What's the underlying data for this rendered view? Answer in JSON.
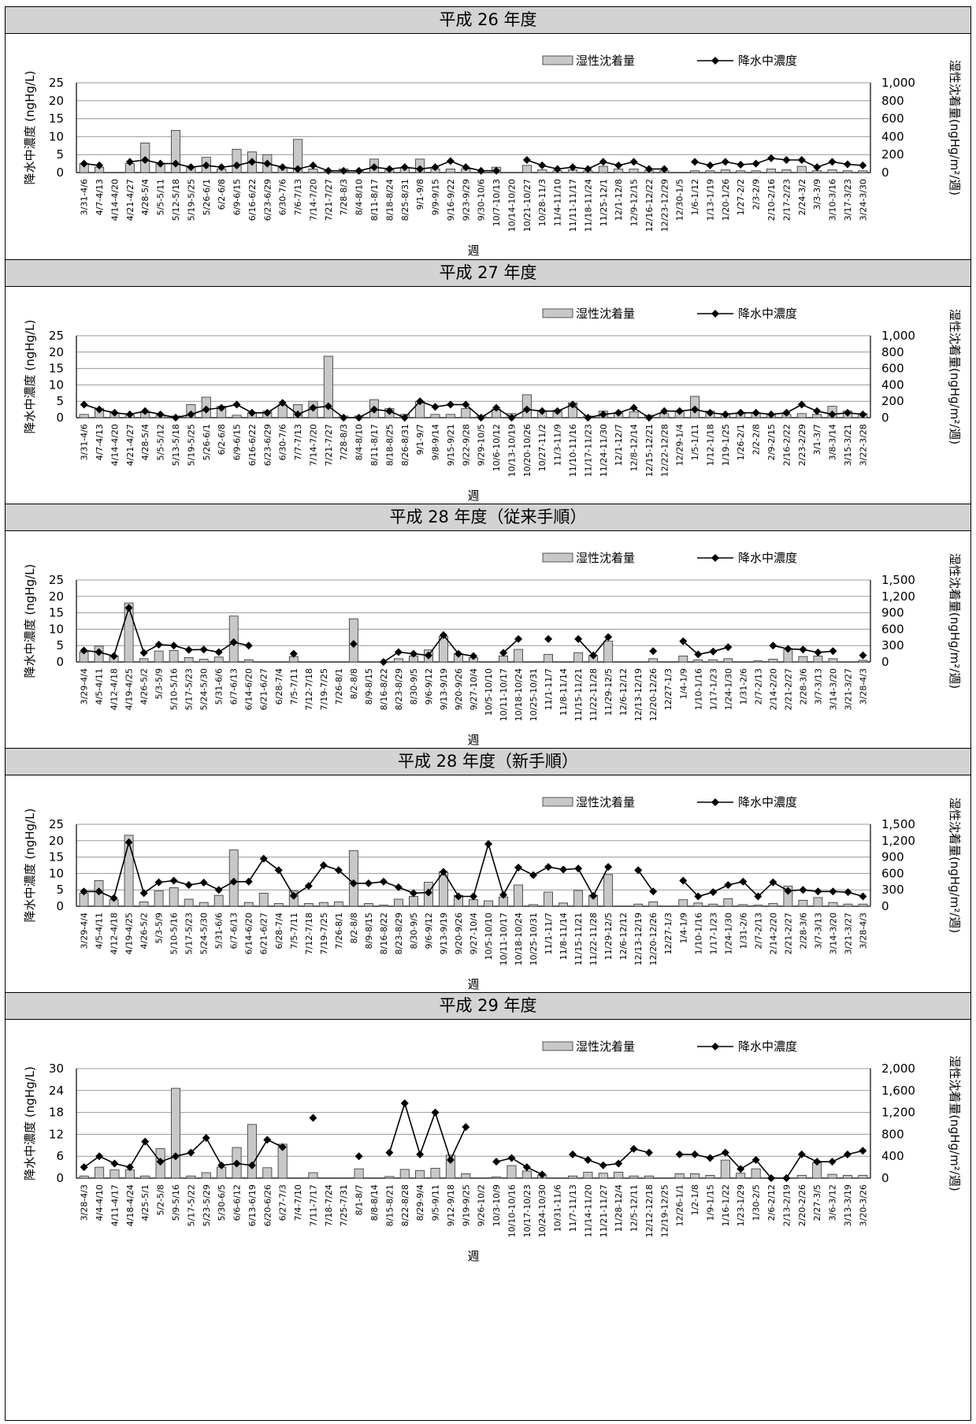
{
  "legend": {
    "bar_label": "湿性沈着量",
    "line_label": "降水中濃度"
  },
  "colors": {
    "bar_fill": "#c8c8c8",
    "bar_stroke": "#333333",
    "line": "#000000",
    "marker": "#000000",
    "grid": "#999999",
    "title_bg": "#d3d3d3"
  },
  "chart_data": [
    {
      "type": "bar+line",
      "title": "平成 26 年度",
      "ylabel": "降水中濃度 (ngHg/L)",
      "y2label": "湿性沈着量(ngHg/m²/週)",
      "xlabel": "週",
      "ylim": [
        0,
        25
      ],
      "yticks": [
        "0",
        "5",
        "10",
        "15",
        "20",
        "25"
      ],
      "y2lim": [
        0,
        1000
      ],
      "y2ticks": [
        "0",
        "200",
        "400",
        "600",
        "800",
        "1,000"
      ],
      "legend_position": "top-right",
      "grid": true,
      "categories": [
        "3/31-4/6",
        "4/7-4/13",
        "4/14-4/20",
        "4/21-4/27",
        "4/28-5/4",
        "5/5-5/11",
        "5/12-5/18",
        "5/19-5/25",
        "5/26-6/1",
        "6/2-6/8",
        "6/9-6/15",
        "6/16-6/22",
        "6/23-6/29",
        "6/30-7/6",
        "7/6-7/13",
        "7/14-7/20",
        "7/21-7/27",
        "7/28-8/3",
        "8/4-8/10",
        "8/11-8/17",
        "8/18-8/24",
        "8/25-8/31",
        "9/1-9/8",
        "9/9-9/15",
        "9/16-9/22",
        "9/23-9/29",
        "9/30-10/6",
        "10/7-10/13",
        "10/14-10/20",
        "10/21-10/27",
        "10/28-11/3",
        "11/4-11/10",
        "11/11-11/17",
        "11/18-11/24",
        "11/25-12/1",
        "12/1-12/8",
        "12/9-12/15",
        "12/16-12/22",
        "12/23-12/29",
        "12/30-1/5",
        "1/6-1/12",
        "1/13-1/19",
        "1/20-1/26",
        "1/27-2/2",
        "2/3-2/9",
        "2/10-2/16",
        "2/17-2/23",
        "2/24-3/2",
        "3/3-3/9",
        "3/10-3/16",
        "3/17-3/23",
        "3/24-3/30"
      ],
      "series": [
        {
          "name": "湿性沈着量",
          "axis": "right",
          "values": [
            100,
            60,
            0,
            100,
            330,
            100,
            470,
            60,
            170,
            40,
            260,
            230,
            200,
            60,
            370,
            40,
            20,
            40,
            20,
            150,
            30,
            50,
            150,
            40,
            40,
            40,
            0,
            60,
            0,
            80,
            30,
            20,
            30,
            20,
            70,
            40,
            40,
            20,
            20,
            0,
            20,
            20,
            30,
            20,
            20,
            40,
            30,
            70,
            20,
            30,
            20,
            20
          ]
        },
        {
          "name": "降水中濃度",
          "axis": "left",
          "values": [
            2.5,
            2,
            null,
            3,
            3.5,
            2.5,
            2.5,
            1.5,
            2,
            1.5,
            2,
            3,
            2.5,
            1.5,
            1,
            2,
            0.5,
            0.5,
            0.5,
            1.5,
            1,
            1.5,
            1,
            1.5,
            3.2,
            1.5,
            0.5,
            0.5,
            null,
            3.5,
            2,
            1,
            1.5,
            1,
            3,
            2,
            3,
            1,
            1,
            null,
            3,
            2,
            3,
            2.2,
            2.5,
            4,
            3.5,
            3.5,
            1.5,
            3,
            2.3,
            2
          ]
        }
      ]
    },
    {
      "type": "bar+line",
      "title": "平成 27 年度",
      "ylabel": "降水中濃度 (ngHg/L)",
      "y2label": "湿性沈着量(ngHg/m²/週)",
      "xlabel": "週",
      "ylim": [
        0,
        25
      ],
      "yticks": [
        "0",
        "5",
        "10",
        "15",
        "20",
        "25"
      ],
      "y2lim": [
        0,
        1000
      ],
      "y2ticks": [
        "0",
        "200",
        "400",
        "600",
        "800",
        "1,000"
      ],
      "legend_position": "top-right",
      "grid": true,
      "categories": [
        "3/31-4/6",
        "4/7-4/13",
        "4/14-4/20",
        "4/21-4/27",
        "4/28-5/4",
        "5/5-5/12",
        "5/13-5/18",
        "5/19-5/25",
        "5/26-6/1",
        "6/2-6/8",
        "6/9-6/15",
        "6/16-6/22",
        "6/23-6/29",
        "6/30-7/6",
        "7/7-7/13",
        "7/14-7/20",
        "7/21-7/27",
        "7/28-8/3",
        "8/4-8/10",
        "8/11-8/17",
        "8/18-8/25",
        "8/26-8/31",
        "9/1-9/7",
        "9/8-9/14",
        "9/15-9/21",
        "9/22-9/28",
        "9/29-10/5",
        "10/6-10/12",
        "10/13-10/19",
        "10/20-10/26",
        "10/27-11/2",
        "11/3-11/9",
        "11/10-11/16",
        "11/17-11/23",
        "11/24-11/30",
        "12/1-12/7",
        "12/8-12/14",
        "12/15-12/21",
        "12/22-12/28",
        "12/29-1/4",
        "1/5-1/11",
        "1/12-1/18",
        "1/19-1/25",
        "1/26-2/1",
        "2/2-2/8",
        "2/9-2/15",
        "2/16-2/22",
        "2/23-2/29",
        "3/1-3/7",
        "3/8-3/14",
        "3/15-3/21",
        "3/22-3/28"
      ],
      "series": [
        {
          "name": "湿性沈着量",
          "axis": "right",
          "values": [
            40,
            110,
            60,
            30,
            60,
            30,
            20,
            160,
            250,
            140,
            30,
            60,
            80,
            160,
            160,
            200,
            750,
            20,
            20,
            220,
            110,
            40,
            200,
            40,
            40,
            110,
            20,
            100,
            50,
            280,
            80,
            90,
            180,
            20,
            80,
            60,
            70,
            30,
            50,
            70,
            260,
            80,
            50,
            50,
            60,
            40,
            40,
            50,
            40,
            140,
            80,
            50
          ]
        },
        {
          "name": "降水中濃度",
          "axis": "left",
          "values": [
            4,
            2.5,
            1.5,
            1,
            2,
            1,
            0,
            1,
            2.5,
            3,
            4,
            1.5,
            1.5,
            4.5,
            1,
            3,
            3.5,
            0,
            0,
            2.5,
            2,
            0,
            5,
            3.3,
            4,
            4,
            0,
            3,
            0,
            2.5,
            2,
            2,
            4,
            0,
            1,
            1.5,
            3,
            0,
            2,
            2,
            2.5,
            1.5,
            1,
            1.5,
            1.5,
            1,
            1.5,
            4,
            2,
            1,
            1.5,
            1
          ]
        }
      ]
    },
    {
      "type": "bar+line",
      "title": "平成 28 年度（従来手順）",
      "ylabel": "降水中濃度 (ngHg/L)",
      "y2label": "湿性沈着量(ngHg/m²/週)",
      "xlabel": "週",
      "ylim": [
        0,
        25
      ],
      "yticks": [
        "0",
        "5",
        "10",
        "15",
        "20",
        "25"
      ],
      "y2lim": [
        0,
        1500
      ],
      "y2ticks": [
        "0",
        "300",
        "600",
        "900",
        "1,200",
        "1,500"
      ],
      "legend_position": "top-right",
      "grid": true,
      "categories": [
        "3/29-4/4",
        "4/5-4/11",
        "4/12-4/18",
        "4/19-4/25",
        "4/26-5/2",
        "5/3-5/9",
        "5/10-5/16",
        "5/17-5/23",
        "5/24-5/30",
        "5/31-6/6",
        "6/7-6/13",
        "6/14-6/20",
        "6/21-6/27",
        "6/28-7/4",
        "7/5-7/11",
        "7/12-7/18",
        "7/19-7/25",
        "7/26-8/1",
        "8/2-8/8",
        "8/9-8/15",
        "8/16-8/22",
        "8/23-8/29",
        "8/30-9/5",
        "9/6-9/12",
        "9/13-9/19",
        "9/20-9/26",
        "9/27-10/4",
        "10/5-10/10",
        "10/11-10/17",
        "10/18-10/24",
        "10/25-10/31",
        "11/1-11/7",
        "11/8-11/14",
        "11/15-11/21",
        "11/22-11/28",
        "11/29-12/5",
        "12/6-12/12",
        "12/13-12/19",
        "12/20-12/26",
        "12/27-1/3",
        "1/4-1/9",
        "1/10-1/16",
        "1/17-1/23",
        "1/24-1/30",
        "1/31-2/6",
        "2/7-2/13",
        "2/14-2/20",
        "2/21-2/27",
        "2/28-3/6",
        "3/7-3/13",
        "3/14-3/20",
        "3/21-3/27",
        "3/28-4/3"
      ],
      "series": [
        {
          "name": "湿性沈着量",
          "axis": "right",
          "values": [
            180,
            290,
            110,
            1080,
            60,
            200,
            210,
            80,
            50,
            90,
            840,
            40,
            0,
            0,
            100,
            0,
            0,
            0,
            790,
            0,
            0,
            60,
            110,
            220,
            470,
            150,
            80,
            0,
            110,
            230,
            0,
            140,
            0,
            170,
            120,
            380,
            0,
            0,
            60,
            0,
            110,
            40,
            40,
            60,
            0,
            20,
            50,
            230,
            100,
            110,
            60,
            0,
            30
          ]
        },
        {
          "name": "降水中濃度",
          "axis": "left",
          "values": [
            3.5,
            3,
            1.8,
            16.5,
            2.8,
            5.3,
            5,
            3.7,
            3.8,
            3,
            6,
            5,
            null,
            null,
            2.5,
            null,
            null,
            null,
            5.5,
            null,
            0,
            3,
            2.5,
            2,
            8.2,
            2.5,
            1.8,
            null,
            2.8,
            7,
            null,
            7,
            null,
            7,
            2,
            7.6,
            null,
            null,
            3.3,
            null,
            6.3,
            2.3,
            3.2,
            4.5,
            null,
            null,
            5,
            4,
            3.8,
            2.9,
            3.3,
            null,
            2
          ]
        }
      ]
    },
    {
      "type": "bar+line",
      "title": "平成 28 年度（新手順）",
      "ylabel": "降水中濃度 (ngHg/L)",
      "y2label": "湿性沈着量(ngHg/m²/週)",
      "xlabel": "週",
      "ylim": [
        0,
        25
      ],
      "yticks": [
        "0",
        "5",
        "10",
        "15",
        "20",
        "25"
      ],
      "y2lim": [
        0,
        1500
      ],
      "y2ticks": [
        "0",
        "300",
        "600",
        "900",
        "1,200",
        "1,500"
      ],
      "legend_position": "top-right",
      "grid": true,
      "categories": [
        "3/29-4/4",
        "4/5-4/11",
        "4/12-4/18",
        "4/19-4/25",
        "4/26-5/2",
        "5/3-5/9",
        "5/10-5/16",
        "5/17-5/23",
        "5/24-5/30",
        "5/31-6/6",
        "6/7-6/13",
        "6/14-6/20",
        "6/21-6/27",
        "6/28-7/4",
        "7/5-7/11",
        "7/12-7/18",
        "7/19-7/25",
        "7/26-8/1",
        "8/2-8/8",
        "8/9-8/15",
        "8/16-8/22",
        "8/23-8/29",
        "8/30-9/5",
        "9/6-9/12",
        "9/13-9/19",
        "9/20-9/26",
        "9/27-10/4",
        "10/5-10/10",
        "10/11-10/17",
        "10/18-10/24",
        "10/25-10/31",
        "11/1-11/7",
        "11/8-11/14",
        "11/15-11/21",
        "11/22-11/28",
        "11/29-12/5",
        "12/6-12/12",
        "12/13-12/19",
        "12/20-12/26",
        "12/27-1/3",
        "1/4-1/9",
        "1/10-1/16",
        "1/17-1/23",
        "1/24-1/30",
        "1/31-2/6",
        "2/7-2/13",
        "2/14-2/20",
        "2/21-2/27",
        "2/28-3/6",
        "3/7-3/13",
        "3/14-3/20",
        "3/21-3/27",
        "3/28-4/3"
      ],
      "series": [
        {
          "name": "湿性沈着量",
          "axis": "right",
          "values": [
            240,
            470,
            120,
            1300,
            80,
            280,
            340,
            130,
            70,
            200,
            1030,
            70,
            240,
            50,
            280,
            50,
            70,
            80,
            1020,
            50,
            20,
            130,
            180,
            440,
            630,
            200,
            120,
            100,
            170,
            390,
            30,
            260,
            60,
            290,
            200,
            580,
            0,
            40,
            80,
            0,
            120,
            60,
            40,
            140,
            30,
            20,
            50,
            370,
            110,
            160,
            70,
            40,
            40
          ]
        },
        {
          "name": "降水中濃度",
          "axis": "left",
          "values": [
            4.5,
            4.5,
            2.5,
            19.5,
            4,
            7.3,
            7.8,
            6.5,
            7.2,
            5,
            7.5,
            7.5,
            14.5,
            11,
            3.2,
            6.2,
            12.5,
            11,
            7,
            7,
            7.5,
            5.8,
            4,
            4.2,
            10.5,
            3,
            3,
            19,
            3.5,
            11.8,
            9.5,
            12,
            11.2,
            11.5,
            3.2,
            12,
            null,
            11,
            4.5,
            null,
            7.8,
            3,
            4.3,
            6.5,
            7.5,
            3,
            7.3,
            4.7,
            5,
            4.5,
            4.5,
            4.3,
            3
          ]
        }
      ]
    },
    {
      "type": "bar+line",
      "title": "平成 29 年度",
      "ylabel": "降水中濃度 (ngHg/L)",
      "y2label": "湿性沈着量(ngHg/m²/週)",
      "xlabel": "週",
      "ylim": [
        0,
        30
      ],
      "yticks": [
        "0",
        "6",
        "12",
        "18",
        "24",
        "30"
      ],
      "y2lim": [
        0,
        2000
      ],
      "y2ticks": [
        "0",
        "400",
        "800",
        "1,200",
        "1,600",
        "2,000"
      ],
      "legend_position": "top-right",
      "grid": true,
      "categories": [
        "3/28-4/3",
        "4/4-4/10",
        "4/11-4/17",
        "4/18-4/24",
        "4/25-5/1",
        "5/2-5/8",
        "5/9-5/16",
        "5/17-5/22",
        "5/23-5/29",
        "5/30-6/5",
        "6/6-6/12",
        "6/13-6/19",
        "6/20-6/26",
        "6/27-7/3",
        "7/4-7/10",
        "7/11-7/17",
        "7/18-7/24",
        "7/25-7/31",
        "8/1-8/7",
        "8/8-8/14",
        "8/15-8/21",
        "8/22-8/28",
        "8/29-9/4",
        "9/5-9/11",
        "9/12-9/18",
        "9/19-9/25",
        "9/26-10/2",
        "10/3-10/9",
        "10/10-10/16",
        "10/17-10/23",
        "10/24-10/30",
        "10/31-11/6",
        "11/7-11/13",
        "11/14-11/20",
        "11/21-11/27",
        "11/28-12/4",
        "12/5-12/11",
        "12/12-12/18",
        "12/19-12/25",
        "12/26-1/1",
        "1/2-1/8",
        "1/9-1/15",
        "1/16-1/22",
        "1/23-1/29",
        "1/30-2/5",
        "2/6-2/12",
        "2/13-2/19",
        "2/20-2/26",
        "2/27-3/5",
        "3/6-3/12",
        "3/13-3/19",
        "3/20-3/26"
      ],
      "series": [
        {
          "name": "湿性沈着量",
          "axis": "right",
          "values": [
            40,
            200,
            150,
            150,
            40,
            540,
            1640,
            40,
            100,
            200,
            560,
            980,
            190,
            620,
            0,
            100,
            0,
            0,
            170,
            0,
            30,
            160,
            140,
            180,
            420,
            80,
            0,
            20,
            230,
            130,
            60,
            0,
            40,
            110,
            90,
            110,
            40,
            40,
            0,
            80,
            80,
            50,
            330,
            90,
            170,
            0,
            0,
            50,
            280,
            70,
            50,
            50
          ]
        },
        {
          "name": "降水中濃度",
          "axis": "left",
          "values": [
            3,
            6,
            4,
            3,
            10,
            4.5,
            6,
            7,
            11,
            3.5,
            4,
            3.5,
            10.5,
            8.5,
            null,
            16.5,
            null,
            null,
            6,
            null,
            7,
            20.5,
            6.5,
            18,
            5,
            14,
            null,
            4.5,
            5.5,
            3,
            1,
            null,
            6.5,
            5,
            3.5,
            4,
            8,
            7,
            null,
            6.5,
            6.5,
            5.5,
            7,
            2.5,
            5,
            0,
            0,
            6.5,
            4.5,
            4.5,
            6.5,
            7.5
          ]
        }
      ]
    }
  ]
}
